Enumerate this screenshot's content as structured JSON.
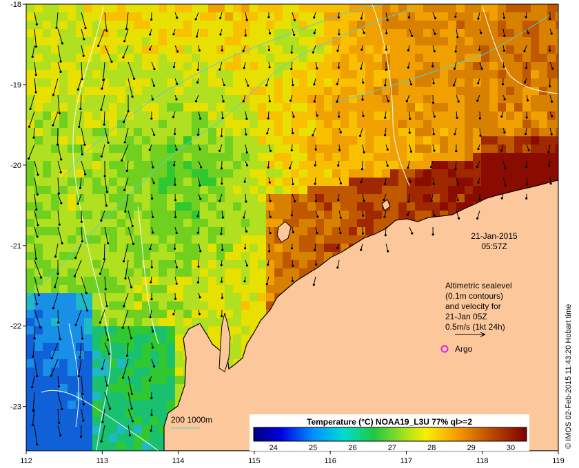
{
  "map": {
    "lon_min": 112,
    "lon_max": 119,
    "lat_min": -23.55,
    "lat_max": -18,
    "lon_ticks": [
      "112",
      "113",
      "114",
      "115",
      "116",
      "117",
      "118",
      "119"
    ],
    "lat_ticks": [
      "-18",
      "-19",
      "-20",
      "-21",
      "-22",
      "-23"
    ]
  },
  "annotations": {
    "date_line1": "21-Jan-2015",
    "date_line2": "05:57Z",
    "alt_lines": [
      "Altimetric sealevel",
      "(0.1m contours)",
      "and velocity for",
      "21-Jan 05Z",
      "0.5m/s (1kt 24h)"
    ],
    "argo_label": "Argo",
    "depth_label": "200  1000m"
  },
  "colorbar": {
    "title": "Temperature (°C) NOAA19_L3U 77% ql>=2",
    "ticks": [
      "24",
      "25",
      "26",
      "27",
      "28",
      "29",
      "30"
    ]
  },
  "credit": "© IMOS 02-Feb-2015 11:43:20 Hobart time",
  "colors": {
    "land": "#fcc89b",
    "contour": "#ffffff",
    "isobath": "#55d0d8",
    "argo": "#e020e0"
  }
}
